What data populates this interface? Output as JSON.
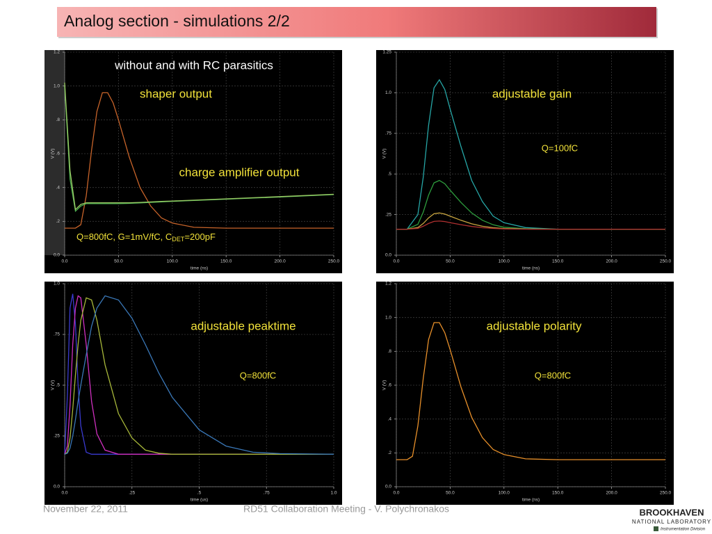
{
  "slide": {
    "title": "Analog section -  simulations 2/2",
    "footer_date": "November 22, 2011",
    "footer_center": "RD51 Collaboration Meeting - V. Polychronakos",
    "logo": [
      "BROOKHAVEN",
      "NATIONAL LABORATORY",
      "Instrumentation Division"
    ]
  },
  "chart_data": [
    {
      "type": "line",
      "ylabel": "V (V)",
      "xlabel": "time (ns)",
      "annotations": [
        {
          "text": "without and with RC parasitics"
        },
        {
          "text": "shaper output"
        },
        {
          "text": "charge amplifier output"
        },
        {
          "parts": [
            "Q=800fC, G=1mV/fC, C",
            "DET",
            "=200pF"
          ]
        }
      ],
      "x": [
        0,
        5,
        10,
        15,
        20,
        25,
        30,
        35,
        40,
        45,
        50,
        60,
        70,
        80,
        90,
        100,
        120,
        150,
        200,
        250
      ],
      "series": [
        {
          "color": "#c8642a",
          "values": [
            0.16,
            0.16,
            0.16,
            0.18,
            0.35,
            0.62,
            0.85,
            0.96,
            0.96,
            0.9,
            0.8,
            0.58,
            0.4,
            0.29,
            0.22,
            0.19,
            0.165,
            0.16,
            0.16,
            0.16
          ]
        },
        {
          "color": "#4caf50",
          "values": [
            1.0,
            0.45,
            0.26,
            0.29,
            0.305,
            0.305,
            0.305,
            0.305,
            0.305,
            0.305,
            0.305,
            0.306,
            0.309,
            0.312,
            0.315,
            0.318,
            0.323,
            0.331,
            0.344,
            0.358
          ]
        },
        {
          "color": "#9ccc65",
          "values": [
            1.02,
            0.5,
            0.27,
            0.3,
            0.31,
            0.31,
            0.31,
            0.31,
            0.31,
            0.31,
            0.31,
            0.31,
            0.312,
            0.315,
            0.318,
            0.32,
            0.325,
            0.333,
            0.346,
            0.36
          ]
        }
      ],
      "xlim": [
        0,
        250
      ],
      "xticks": [
        {
          "value": 0,
          "label": "0.0"
        },
        {
          "value": 50,
          "label": "50.0"
        },
        {
          "value": 100,
          "label": "100.0"
        },
        {
          "value": 150,
          "label": "150.0"
        },
        {
          "value": 200,
          "label": "200.0"
        },
        {
          "value": 250,
          "label": "250.0"
        }
      ],
      "ylim": [
        0,
        1.2
      ],
      "yticks": [
        {
          "value": 0,
          "label": "0.0"
        },
        {
          "value": 0.2,
          "label": ".2"
        },
        {
          "value": 0.4,
          "label": ".4"
        },
        {
          "value": 0.6,
          "label": ".6"
        },
        {
          "value": 0.8,
          "label": ".8"
        },
        {
          "value": 1.0,
          "label": "1.0"
        },
        {
          "value": 1.2,
          "label": "1.2"
        }
      ],
      "grid": true
    },
    {
      "type": "line",
      "ylabel": "V (V)",
      "xlabel": "time (ns)",
      "annotations": [
        {
          "text": "adjustable gain"
        },
        {
          "text": "Q=100fC"
        }
      ],
      "x": [
        0,
        10,
        20,
        25,
        30,
        35,
        40,
        45,
        50,
        60,
        70,
        80,
        90,
        100,
        120,
        150,
        200,
        250
      ],
      "series": [
        {
          "color": "#26a6a6",
          "values": [
            0.16,
            0.16,
            0.25,
            0.48,
            0.8,
            1.03,
            1.08,
            1.02,
            0.9,
            0.67,
            0.46,
            0.33,
            0.24,
            0.2,
            0.17,
            0.16,
            0.16,
            0.16
          ]
        },
        {
          "color": "#2e9e3e",
          "values": [
            0.16,
            0.16,
            0.19,
            0.265,
            0.37,
            0.445,
            0.46,
            0.44,
            0.4,
            0.325,
            0.26,
            0.215,
            0.187,
            0.172,
            0.163,
            0.16,
            0.16,
            0.16
          ]
        },
        {
          "color": "#c9a640",
          "values": [
            0.16,
            0.16,
            0.17,
            0.195,
            0.23,
            0.255,
            0.26,
            0.253,
            0.24,
            0.215,
            0.193,
            0.178,
            0.169,
            0.164,
            0.161,
            0.16,
            0.16,
            0.16
          ]
        },
        {
          "color": "#b03030",
          "values": [
            0.16,
            0.16,
            0.165,
            0.178,
            0.195,
            0.208,
            0.21,
            0.207,
            0.2,
            0.188,
            0.177,
            0.169,
            0.165,
            0.162,
            0.16,
            0.16,
            0.16,
            0.16
          ]
        }
      ],
      "xlim": [
        0,
        250
      ],
      "xticks": [
        {
          "value": 0,
          "label": "0.0"
        },
        {
          "value": 50,
          "label": "50.0"
        },
        {
          "value": 100,
          "label": "100.0"
        },
        {
          "value": 150,
          "label": "150.0"
        },
        {
          "value": 200,
          "label": "200.0"
        },
        {
          "value": 250,
          "label": "250.0"
        }
      ],
      "ylim": [
        0,
        1.25
      ],
      "yticks": [
        {
          "value": 0,
          "label": "0.0"
        },
        {
          "value": 0.25,
          "label": ".25"
        },
        {
          "value": 0.5,
          "label": ".5"
        },
        {
          "value": 0.75,
          "label": ".75"
        },
        {
          "value": 1.0,
          "label": "1.0"
        },
        {
          "value": 1.25,
          "label": "1.25"
        }
      ],
      "grid": true
    },
    {
      "type": "line",
      "ylabel": "V (V)",
      "xlabel": "time (us)",
      "annotations": [
        {
          "text": "adjustable peaktime"
        },
        {
          "text": "Q=800fC"
        }
      ],
      "x": [
        0,
        0.01,
        0.02,
        0.03,
        0.04,
        0.05,
        0.06,
        0.08,
        0.1,
        0.12,
        0.15,
        0.2,
        0.25,
        0.3,
        0.35,
        0.4,
        0.5,
        0.6,
        0.7,
        0.8,
        1.0
      ],
      "series": [
        {
          "color": "#3a3ad0",
          "values": [
            0.16,
            0.45,
            0.88,
            0.95,
            0.8,
            0.5,
            0.3,
            0.17,
            0.16,
            0.16,
            0.16,
            0.16,
            0.16,
            0.16,
            0.16,
            0.16,
            0.16,
            0.16,
            0.16,
            0.16,
            0.16
          ]
        },
        {
          "color": "#d030c0",
          "values": [
            0.16,
            0.2,
            0.4,
            0.7,
            0.88,
            0.94,
            0.93,
            0.7,
            0.42,
            0.26,
            0.18,
            0.16,
            0.16,
            0.16,
            0.16,
            0.16,
            0.16,
            0.16,
            0.16,
            0.16,
            0.16
          ]
        },
        {
          "color": "#a8b83a",
          "values": [
            0.16,
            0.17,
            0.24,
            0.38,
            0.55,
            0.7,
            0.82,
            0.93,
            0.92,
            0.82,
            0.6,
            0.36,
            0.24,
            0.18,
            0.165,
            0.16,
            0.16,
            0.16,
            0.16,
            0.16,
            0.16
          ]
        },
        {
          "color": "#3a78b8",
          "values": [
            0.16,
            0.165,
            0.19,
            0.25,
            0.33,
            0.42,
            0.5,
            0.65,
            0.79,
            0.88,
            0.94,
            0.92,
            0.83,
            0.7,
            0.56,
            0.44,
            0.28,
            0.2,
            0.17,
            0.163,
            0.16
          ]
        }
      ],
      "xlim": [
        0,
        1.0
      ],
      "xticks": [
        {
          "value": 0,
          "label": "0.0"
        },
        {
          "value": 0.25,
          "label": ".25"
        },
        {
          "value": 0.5,
          "label": ".5"
        },
        {
          "value": 0.75,
          "label": ".75"
        },
        {
          "value": 1.0,
          "label": "1.0"
        }
      ],
      "ylim": [
        0,
        1.0
      ],
      "yticks": [
        {
          "value": 0,
          "label": "0.0"
        },
        {
          "value": 0.25,
          "label": ".25"
        },
        {
          "value": 0.5,
          "label": ".5"
        },
        {
          "value": 0.75,
          "label": ".75"
        },
        {
          "value": 1.0,
          "label": "1.0"
        }
      ],
      "grid": true
    },
    {
      "type": "line",
      "ylabel": "V (V)",
      "xlabel": "time (ns)",
      "annotations": [
        {
          "text": "adjustable polarity"
        },
        {
          "text": "Q=800fC"
        }
      ],
      "x": [
        0,
        5,
        10,
        15,
        20,
        25,
        30,
        35,
        40,
        45,
        50,
        60,
        70,
        80,
        90,
        100,
        120,
        150,
        200,
        250
      ],
      "series": [
        {
          "color": "#e8902a",
          "values": [
            0.16,
            0.16,
            0.16,
            0.18,
            0.36,
            0.64,
            0.87,
            0.97,
            0.97,
            0.91,
            0.81,
            0.59,
            0.41,
            0.29,
            0.22,
            0.19,
            0.165,
            0.16,
            0.16,
            0.16
          ]
        }
      ],
      "xlim": [
        0,
        250
      ],
      "xticks": [
        {
          "value": 0,
          "label": "0.0"
        },
        {
          "value": 50,
          "label": "50.0"
        },
        {
          "value": 100,
          "label": "100.0"
        },
        {
          "value": 150,
          "label": "150.0"
        },
        {
          "value": 200,
          "label": "200.0"
        },
        {
          "value": 250,
          "label": "250.0"
        }
      ],
      "ylim": [
        0,
        1.2
      ],
      "yticks": [
        {
          "value": 0,
          "label": "0.0"
        },
        {
          "value": 0.2,
          "label": ".2"
        },
        {
          "value": 0.4,
          "label": ".4"
        },
        {
          "value": 0.6,
          "label": ".6"
        },
        {
          "value": 0.8,
          "label": ".8"
        },
        {
          "value": 1.0,
          "label": "1.0"
        },
        {
          "value": 1.2,
          "label": "1.2"
        }
      ],
      "grid": true
    }
  ]
}
